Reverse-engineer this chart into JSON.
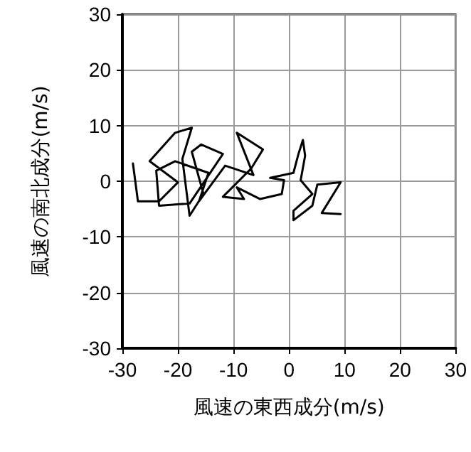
{
  "chart_data": {
    "type": "line",
    "xlabel": "風速の東西成分(m/s)",
    "ylabel": "風速の南北成分(m/s)",
    "xlim": [
      -30,
      30
    ],
    "ylim": [
      -30,
      30
    ],
    "xticks": [
      -30,
      -20,
      -10,
      0,
      10,
      20,
      30
    ],
    "yticks": [
      -30,
      -20,
      -10,
      0,
      10,
      20,
      30
    ],
    "grid": true,
    "marker": "none",
    "line_style": "solid",
    "series": [
      {
        "color": "#000000",
        "x": [
          -28.1,
          -27.2,
          -23.4,
          -20.0,
          -25.1,
          -20.5,
          -17.5,
          -19.2,
          -17.9,
          -15.4,
          -17.5,
          -15.8,
          -11.9,
          -17.9,
          -23.4,
          -23.9,
          -20.5,
          -14.5,
          -16.2,
          -11.5,
          -6.4,
          -9.4,
          -4.7,
          -6.8,
          -11.9,
          -8.1,
          -9.4,
          -5.2,
          -1.3,
          -0.9,
          -3.4,
          0.8,
          1.7,
          2.5,
          2.9,
          2.1,
          4.2,
          0.8,
          0.8,
          4.2,
          5.1,
          9.3,
          5.9,
          9.3
        ],
        "values": [
          3.2,
          -3.6,
          -3.6,
          -0.2,
          3.6,
          8.7,
          9.6,
          4.0,
          -6.2,
          -2.3,
          5.3,
          6.6,
          4.9,
          -4.0,
          -4.4,
          1.9,
          3.6,
          1.5,
          -3.6,
          2.8,
          1.1,
          8.7,
          5.7,
          2.3,
          -2.8,
          -3.2,
          -1.1,
          -3.2,
          -2.3,
          0.2,
          0.6,
          1.5,
          4.9,
          7.4,
          4.6,
          0.2,
          -2.3,
          -5.3,
          -7.0,
          -4.4,
          -0.6,
          -0.2,
          -5.7,
          -5.9
        ]
      }
    ]
  }
}
